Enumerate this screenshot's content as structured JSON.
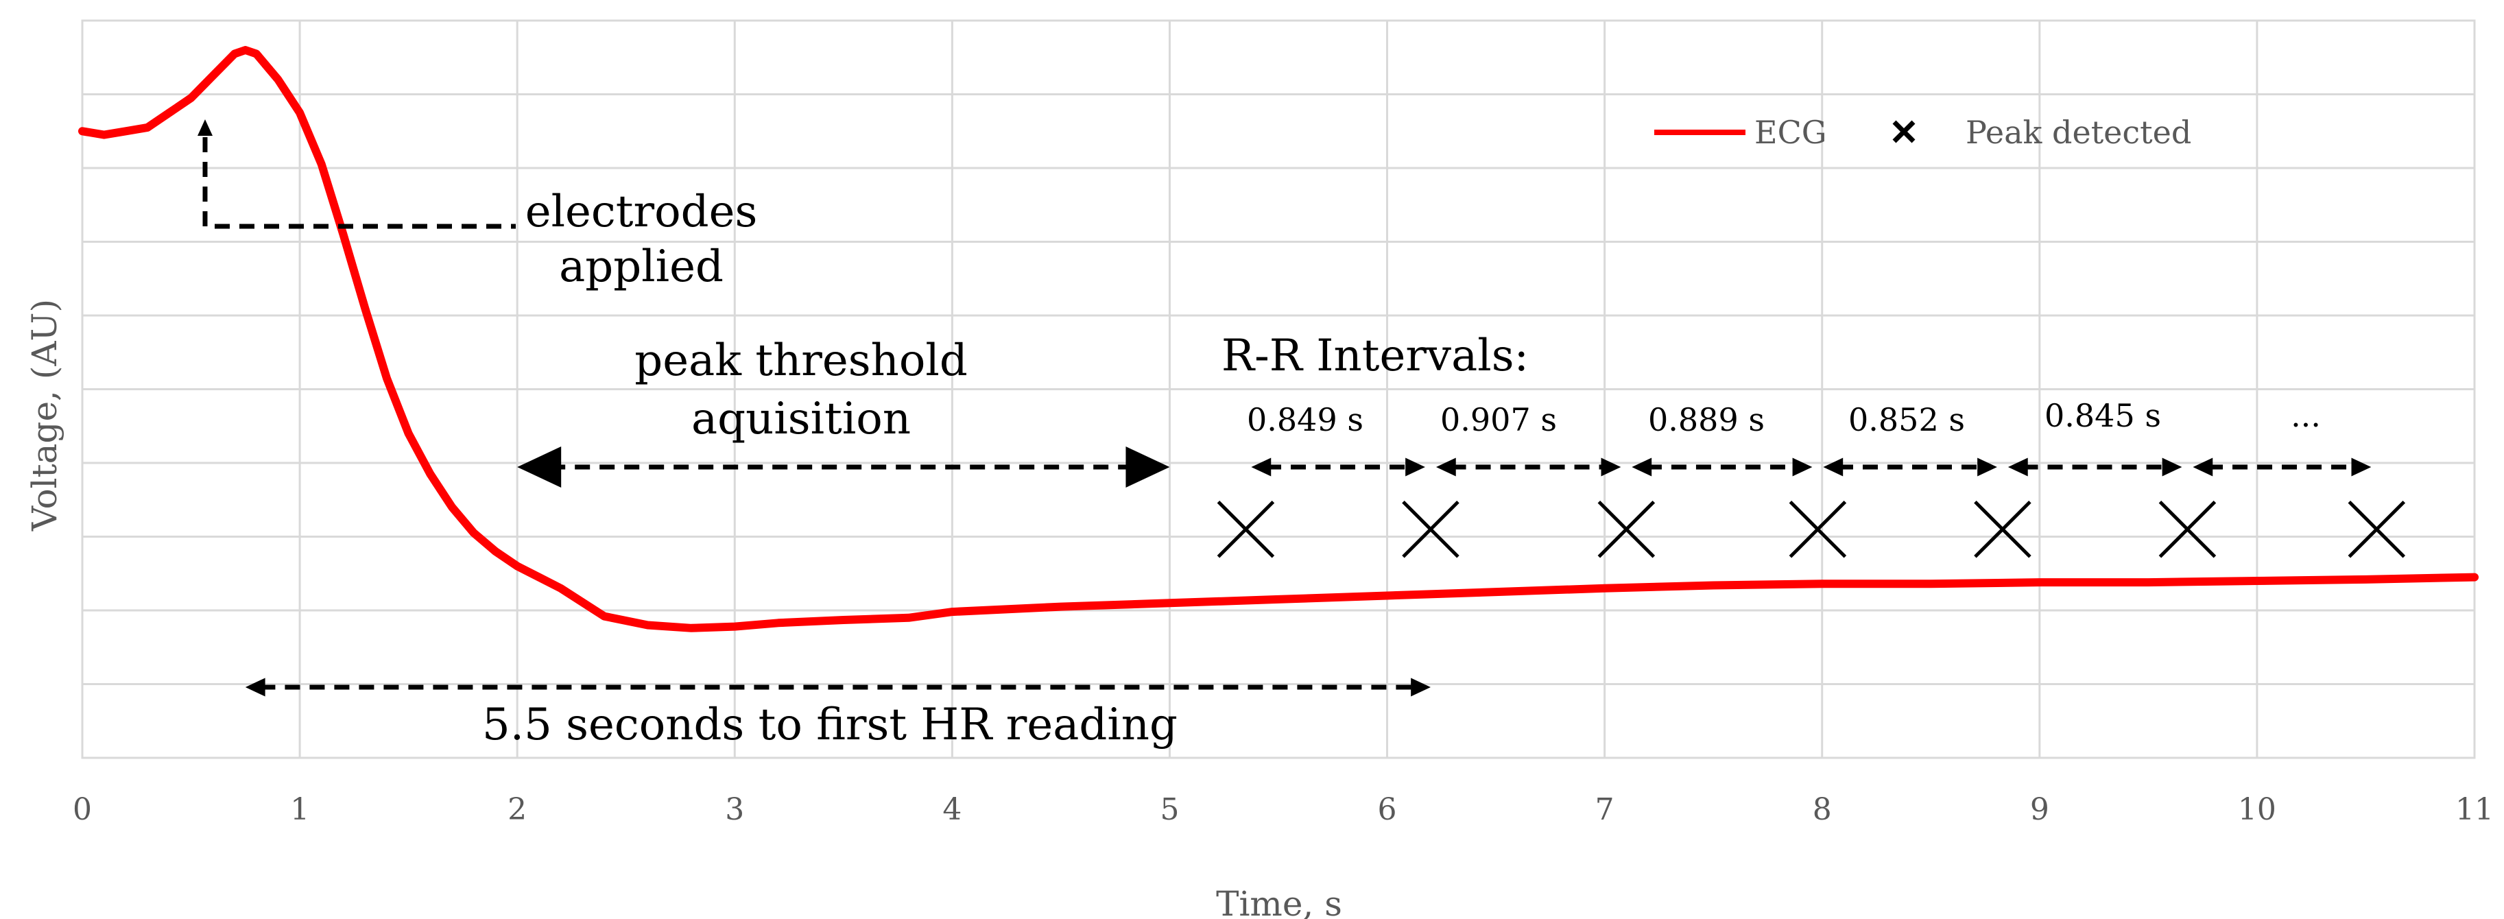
{
  "chart_data": {
    "type": "line",
    "title": "",
    "xlabel": "Time, s",
    "ylabel": "Voltage, (AU)",
    "xlim": [
      0,
      11
    ],
    "ylim": [
      0,
      10
    ],
    "x_ticks": [
      "0",
      "1",
      "2",
      "3",
      "4",
      "5",
      "6",
      "7",
      "8",
      "9",
      "10",
      "11"
    ],
    "y_gridlines": 9,
    "grid": true,
    "legend_position": "top-right",
    "colors": {
      "ecg": "#ff0000",
      "marker": "#000000",
      "grid": "#d9d9d9"
    },
    "series": [
      {
        "name": "ECG",
        "color": "#ff0000",
        "x": [
          0,
          0.1,
          0.2,
          0.3,
          0.4,
          0.5,
          0.6,
          0.7,
          0.75,
          0.8,
          0.9,
          1.0,
          1.1,
          1.2,
          1.3,
          1.4,
          1.5,
          1.6,
          1.7,
          1.8,
          1.9,
          2.0,
          2.1,
          2.2,
          2.4,
          2.6,
          2.8,
          3.0,
          3.2,
          3.5,
          3.8,
          4.0,
          4.5,
          5.0,
          5.5,
          6.0,
          6.5,
          7.0,
          7.5,
          8.0,
          8.5,
          9.0,
          9.5,
          10.0,
          10.5,
          11.0
        ],
        "y": [
          8.5,
          8.45,
          8.5,
          8.55,
          8.75,
          8.95,
          9.25,
          9.55,
          9.6,
          9.55,
          9.2,
          8.75,
          8.05,
          7.1,
          6.1,
          5.15,
          4.4,
          3.85,
          3.4,
          3.05,
          2.8,
          2.6,
          2.45,
          2.3,
          1.92,
          1.8,
          1.76,
          1.78,
          1.83,
          1.87,
          1.9,
          1.98,
          2.05,
          2.1,
          2.15,
          2.2,
          2.25,
          2.3,
          2.34,
          2.36,
          2.36,
          2.38,
          2.38,
          2.4,
          2.42,
          2.45
        ]
      },
      {
        "name": "Peak detected",
        "color": "#000000",
        "marker": "x",
        "x": [
          5.35,
          6.2,
          7.1,
          7.98,
          8.83,
          9.68,
          10.55
        ],
        "y": [
          3.1,
          3.1,
          3.1,
          3.1,
          3.1,
          3.1,
          3.1
        ]
      }
    ],
    "annotations": {
      "electrodes": [
        "electrodes",
        "applied"
      ],
      "threshold": [
        "peak threshold",
        "aquisition"
      ],
      "rr_title": "R-R Intervals:",
      "rr_intervals": [
        "0.849 s",
        "0.907 s",
        "0.889 s",
        "0.852 s",
        "0.845 s",
        "..."
      ],
      "first_reading": "5.5 seconds to first HR reading"
    }
  }
}
